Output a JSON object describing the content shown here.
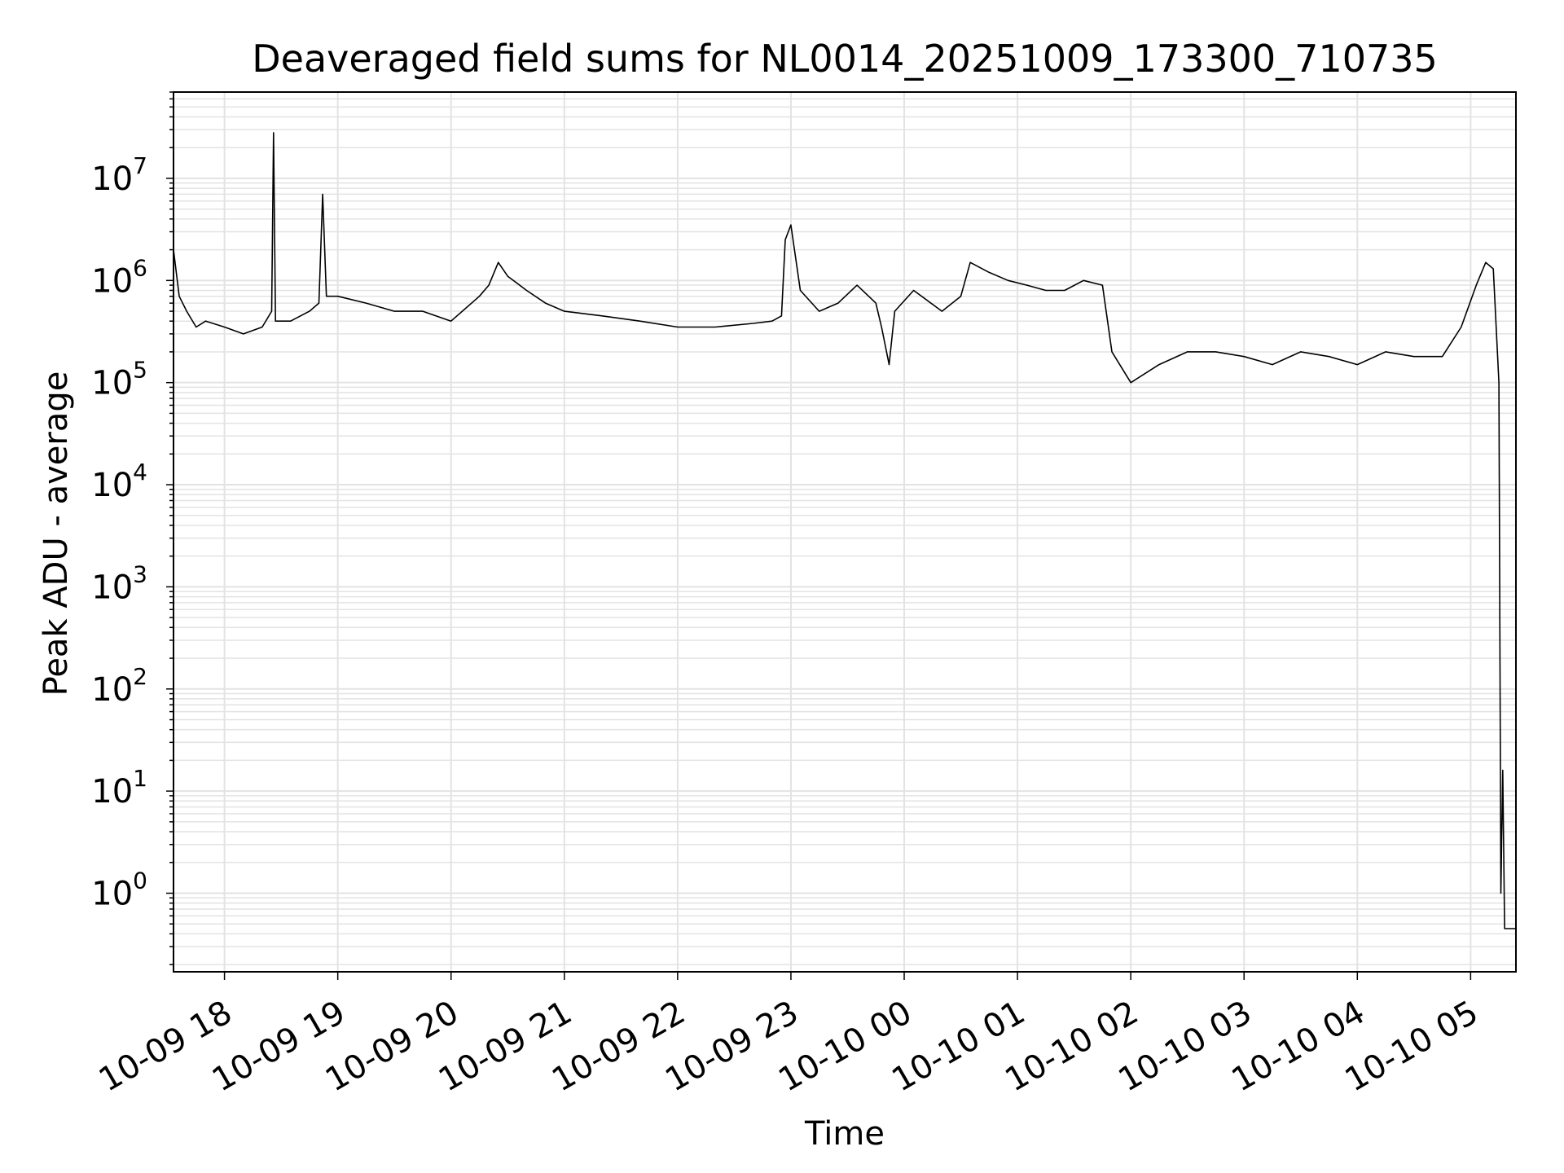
{
  "chart_data": {
    "type": "line",
    "title": "Deaveraged field sums for NL0014_20251009_173300_710735",
    "xlabel": "Time",
    "ylabel": "Peak ADU - average",
    "x_scale": "time",
    "y_scale": "log",
    "xlim": [
      "2025-10-09 17:33",
      "2025-10-10 05:24"
    ],
    "ylim": [
      0.17,
      70000000
    ],
    "grid": true,
    "legend": "none",
    "x_tick_labels": [
      "10-09 18",
      "10-09 19",
      "10-09 20",
      "10-09 21",
      "10-09 22",
      "10-09 23",
      "10-10 00",
      "10-10 01",
      "10-10 02",
      "10-10 03",
      "10-10 04",
      "10-10 05"
    ],
    "y_tick_labels": [
      {
        "base": "10",
        "exp": "0",
        "value": 1
      },
      {
        "base": "10",
        "exp": "1",
        "value": 10
      },
      {
        "base": "10",
        "exp": "2",
        "value": 100
      },
      {
        "base": "10",
        "exp": "3",
        "value": 1000
      },
      {
        "base": "10",
        "exp": "4",
        "value": 10000
      },
      {
        "base": "10",
        "exp": "5",
        "value": 100000
      },
      {
        "base": "10",
        "exp": "6",
        "value": 1000000
      },
      {
        "base": "10",
        "exp": "7",
        "value": 10000000
      }
    ],
    "colors": {
      "line": "#000000",
      "grid": "#e3e3e3",
      "axes": "#000000"
    },
    "series": [
      {
        "x": [
          "2025-10-09 17:33",
          "2025-10-09 17:36",
          "2025-10-09 17:40",
          "2025-10-09 17:45",
          "2025-10-09 17:50",
          "2025-10-09 18:00",
          "2025-10-09 18:10",
          "2025-10-09 18:20",
          "2025-10-09 18:25",
          "2025-10-09 18:26",
          "2025-10-09 18:27",
          "2025-10-09 18:35",
          "2025-10-09 18:45",
          "2025-10-09 18:50",
          "2025-10-09 18:52",
          "2025-10-09 18:54",
          "2025-10-09 19:00",
          "2025-10-09 19:15",
          "2025-10-09 19:30",
          "2025-10-09 19:45",
          "2025-10-09 20:00",
          "2025-10-09 20:15",
          "2025-10-09 20:20",
          "2025-10-09 20:25",
          "2025-10-09 20:30",
          "2025-10-09 20:40",
          "2025-10-09 20:50",
          "2025-10-09 21:00",
          "2025-10-09 21:20",
          "2025-10-09 21:40",
          "2025-10-09 22:00",
          "2025-10-09 22:20",
          "2025-10-09 22:40",
          "2025-10-09 22:50",
          "2025-10-09 22:55",
          "2025-10-09 22:57",
          "2025-10-09 23:00",
          "2025-10-09 23:05",
          "2025-10-09 23:15",
          "2025-10-09 23:25",
          "2025-10-09 23:35",
          "2025-10-09 23:45",
          "2025-10-09 23:48",
          "2025-10-09 23:52",
          "2025-10-09 23:55",
          "2025-10-10 00:05",
          "2025-10-10 00:20",
          "2025-10-10 00:30",
          "2025-10-10 00:35",
          "2025-10-10 00:45",
          "2025-10-10 00:55",
          "2025-10-10 01:05",
          "2025-10-10 01:15",
          "2025-10-10 01:25",
          "2025-10-10 01:35",
          "2025-10-10 01:45",
          "2025-10-10 01:50",
          "2025-10-10 02:00",
          "2025-10-10 02:15",
          "2025-10-10 02:30",
          "2025-10-10 02:45",
          "2025-10-10 03:00",
          "2025-10-10 03:15",
          "2025-10-10 03:30",
          "2025-10-10 03:45",
          "2025-10-10 04:00",
          "2025-10-10 04:15",
          "2025-10-10 04:30",
          "2025-10-10 04:45",
          "2025-10-10 04:55",
          "2025-10-10 05:03",
          "2025-10-10 05:08",
          "2025-10-10 05:12",
          "2025-10-10 05:15",
          "2025-10-10 05:16",
          "2025-10-10 05:17",
          "2025-10-10 05:18",
          "2025-10-10 05:24"
        ],
        "y": [
          2000000,
          700000,
          500000,
          350000,
          400000,
          350000,
          300000,
          350000,
          500000,
          28000000,
          400000,
          400000,
          500000,
          600000,
          7000000,
          700000,
          700000,
          600000,
          500000,
          500000,
          400000,
          700000,
          900000,
          1500000,
          1100000,
          800000,
          600000,
          500000,
          450000,
          400000,
          350000,
          350000,
          380000,
          400000,
          450000,
          2500000,
          3500000,
          800000,
          500000,
          600000,
          900000,
          600000,
          350000,
          150000,
          500000,
          800000,
          500000,
          700000,
          1500000,
          1200000,
          1000000,
          900000,
          800000,
          800000,
          1000000,
          900000,
          200000,
          100000,
          150000,
          200000,
          200000,
          180000,
          150000,
          200000,
          180000,
          150000,
          200000,
          180000,
          180000,
          350000,
          900000,
          1500000,
          1300000,
          100000,
          1,
          16,
          0.45,
          0.45
        ]
      }
    ]
  }
}
